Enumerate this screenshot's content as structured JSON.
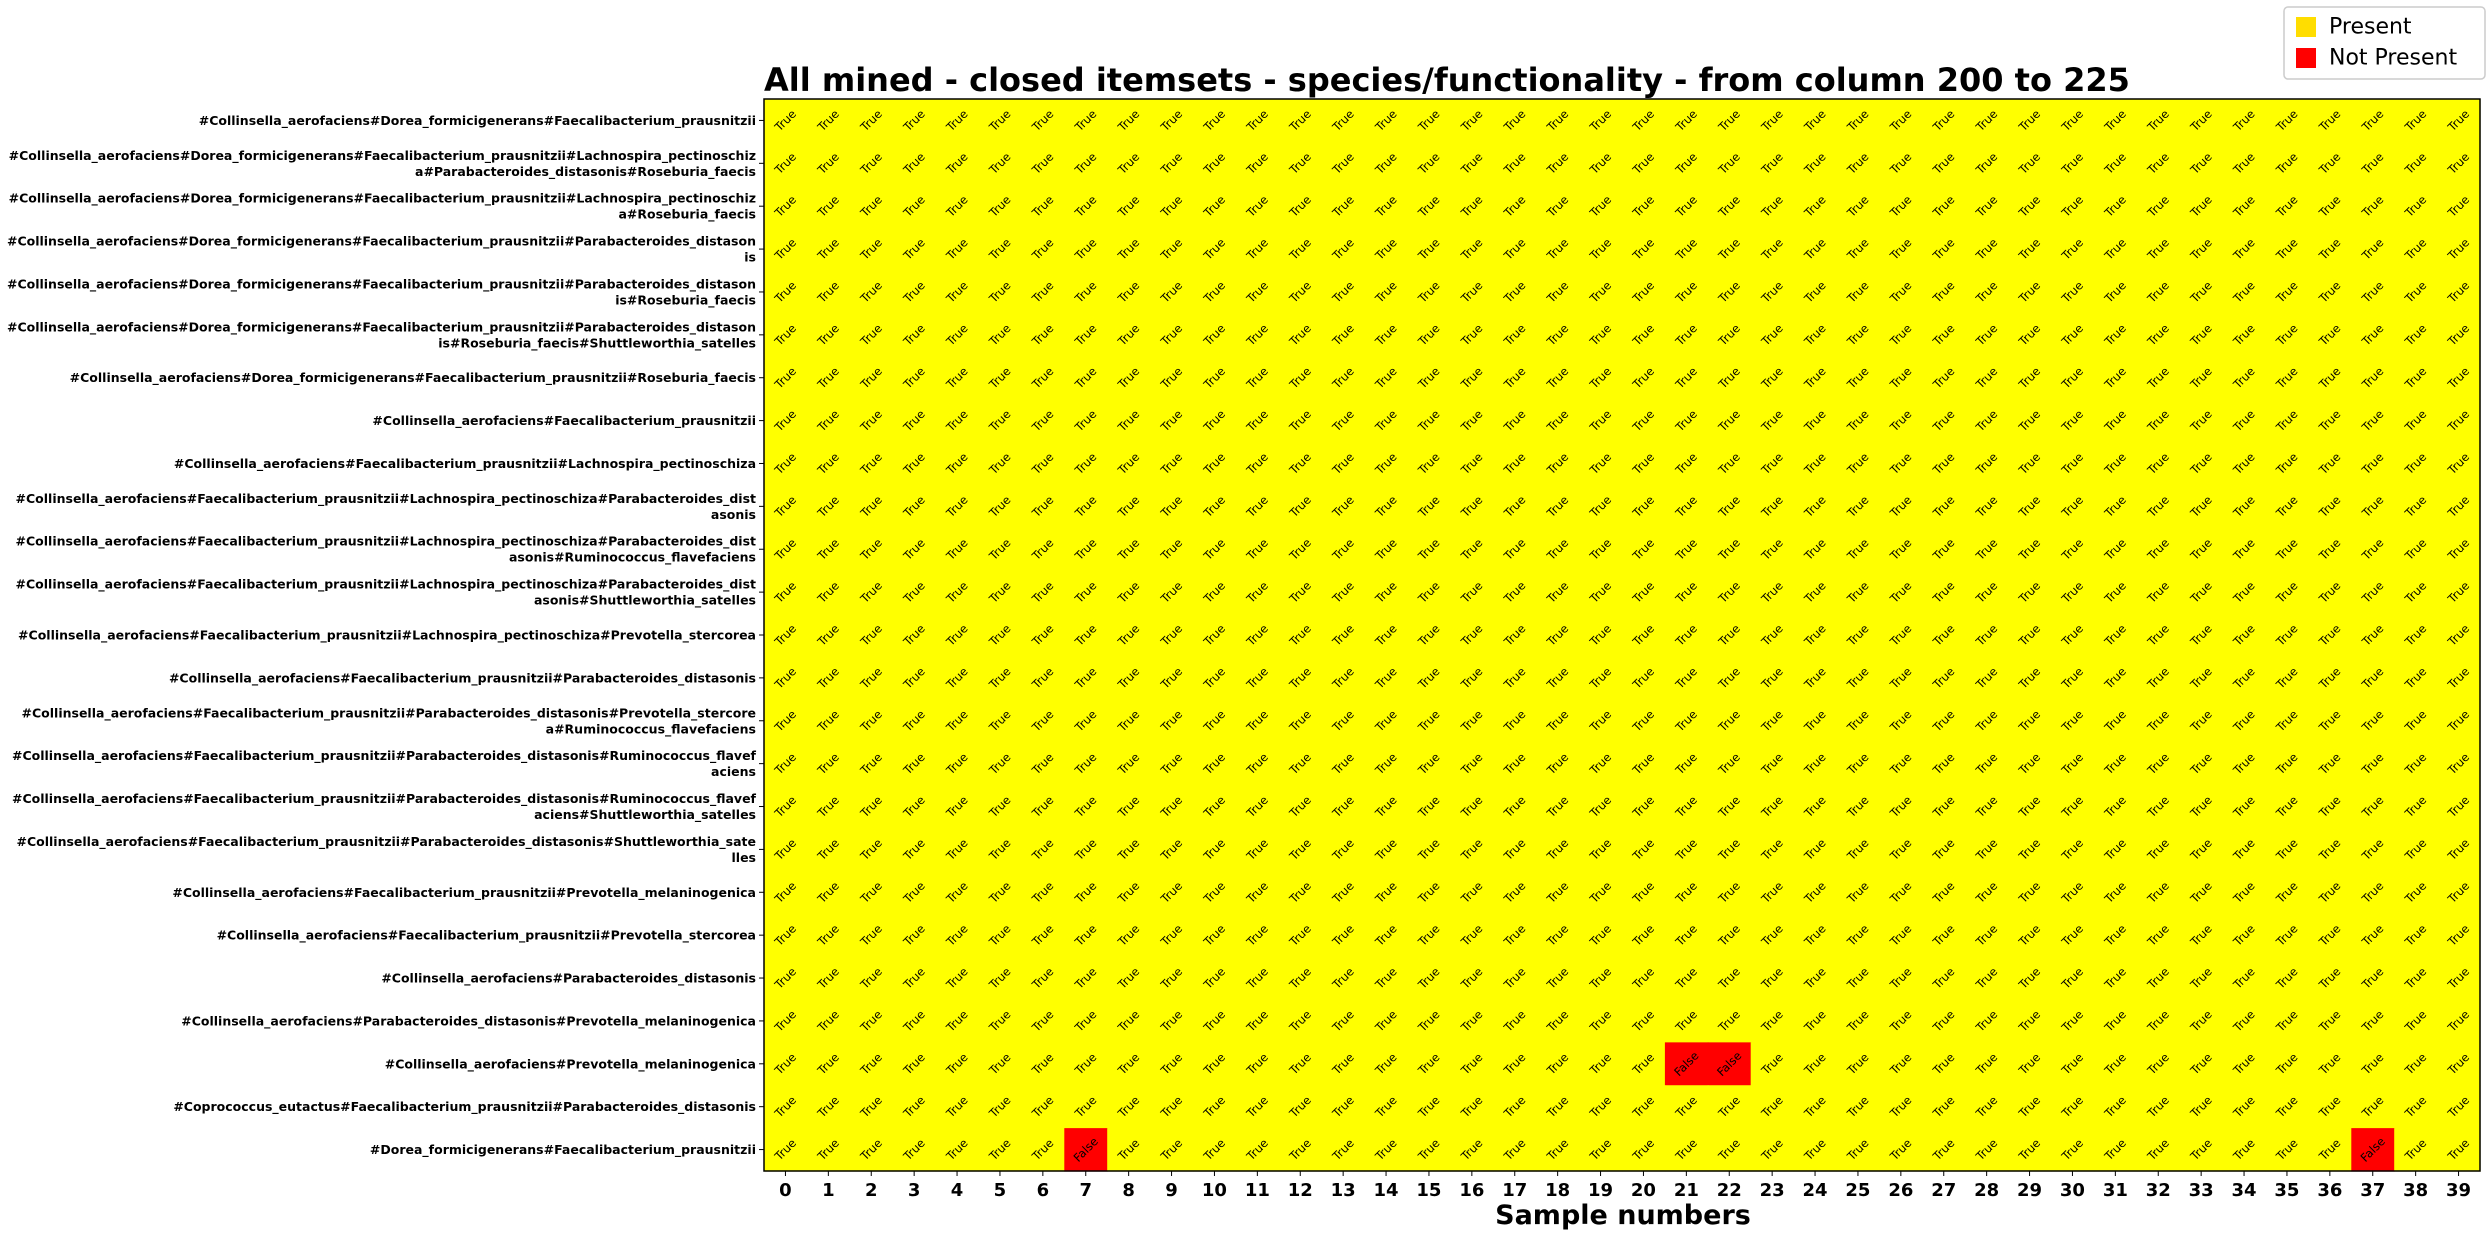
{
  "chart_data": {
    "type": "heatmap",
    "title": "All mined - closed itemsets - species/functionality - from column 200 to 225",
    "xlabel": "Sample numbers",
    "ylabel": "",
    "x": [
      0,
      1,
      2,
      3,
      4,
      5,
      6,
      7,
      8,
      9,
      10,
      11,
      12,
      13,
      14,
      15,
      16,
      17,
      18,
      19,
      20,
      21,
      22,
      23,
      24,
      25,
      26,
      27,
      28,
      29,
      30,
      31,
      32,
      33,
      34,
      35,
      36,
      37,
      38,
      39
    ],
    "rows": [
      [
        "#Collinsella_aerofaciens#Dorea_formicigenerans#Faecalibacterium_prausnitzii"
      ],
      [
        "#Collinsella_aerofaciens#Dorea_formicigenerans#Faecalibacterium_prausnitzii#Lachnospira_pectinoschiz",
        "a#Parabacteroides_distasonis#Roseburia_faecis"
      ],
      [
        "#Collinsella_aerofaciens#Dorea_formicigenerans#Faecalibacterium_prausnitzii#Lachnospira_pectinoschiz",
        "a#Roseburia_faecis"
      ],
      [
        "#Collinsella_aerofaciens#Dorea_formicigenerans#Faecalibacterium_prausnitzii#Parabacteroides_distason",
        "is"
      ],
      [
        "#Collinsella_aerofaciens#Dorea_formicigenerans#Faecalibacterium_prausnitzii#Parabacteroides_distason",
        "is#Roseburia_faecis"
      ],
      [
        "#Collinsella_aerofaciens#Dorea_formicigenerans#Faecalibacterium_prausnitzii#Parabacteroides_distason",
        "is#Roseburia_faecis#Shuttleworthia_satelles"
      ],
      [
        "#Collinsella_aerofaciens#Dorea_formicigenerans#Faecalibacterium_prausnitzii#Roseburia_faecis"
      ],
      [
        "#Collinsella_aerofaciens#Faecalibacterium_prausnitzii"
      ],
      [
        "#Collinsella_aerofaciens#Faecalibacterium_prausnitzii#Lachnospira_pectinoschiza"
      ],
      [
        "#Collinsella_aerofaciens#Faecalibacterium_prausnitzii#Lachnospira_pectinoschiza#Parabacteroides_dist",
        "asonis"
      ],
      [
        "#Collinsella_aerofaciens#Faecalibacterium_prausnitzii#Lachnospira_pectinoschiza#Parabacteroides_dist",
        "asonis#Ruminococcus_flavefaciens"
      ],
      [
        "#Collinsella_aerofaciens#Faecalibacterium_prausnitzii#Lachnospira_pectinoschiza#Parabacteroides_dist",
        "asonis#Shuttleworthia_satelles"
      ],
      [
        "#Collinsella_aerofaciens#Faecalibacterium_prausnitzii#Lachnospira_pectinoschiza#Prevotella_stercorea"
      ],
      [
        "#Collinsella_aerofaciens#Faecalibacterium_prausnitzii#Parabacteroides_distasonis"
      ],
      [
        "#Collinsella_aerofaciens#Faecalibacterium_prausnitzii#Parabacteroides_distasonis#Prevotella_stercore",
        "a#Ruminococcus_flavefaciens"
      ],
      [
        "#Collinsella_aerofaciens#Faecalibacterium_prausnitzii#Parabacteroides_distasonis#Ruminococcus_flavef",
        "aciens"
      ],
      [
        "#Collinsella_aerofaciens#Faecalibacterium_prausnitzii#Parabacteroides_distasonis#Ruminococcus_flavef",
        "aciens#Shuttleworthia_satelles"
      ],
      [
        "#Collinsella_aerofaciens#Faecalibacterium_prausnitzii#Parabacteroides_distasonis#Shuttleworthia_sate",
        "lles"
      ],
      [
        "#Collinsella_aerofaciens#Faecalibacterium_prausnitzii#Prevotella_melaninogenica"
      ],
      [
        "#Collinsella_aerofaciens#Faecalibacterium_prausnitzii#Prevotella_stercorea"
      ],
      [
        "#Collinsella_aerofaciens#Parabacteroides_distasonis"
      ],
      [
        "#Collinsella_aerofaciens#Parabacteroides_distasonis#Prevotella_melaninogenica"
      ],
      [
        "#Collinsella_aerofaciens#Prevotella_melaninogenica"
      ],
      [
        "#Coprococcus_eutactus#Faecalibacterium_prausnitzii#Parabacteroides_distasonis"
      ],
      [
        "#Dorea_formicigenerans#Faecalibacterium_prausnitzii"
      ]
    ],
    "default_value": "True",
    "false_cells": [
      [
        22,
        21
      ],
      [
        22,
        22
      ],
      [
        24,
        7
      ],
      [
        24,
        37
      ]
    ],
    "true_label": "True",
    "false_label": "False",
    "colors": {
      "present": "#ffff00",
      "not_present": "#ff0000"
    },
    "legend": {
      "placement": "top-right",
      "entries": [
        {
          "label": "Present",
          "color": "#ffdd00"
        },
        {
          "label": "Not Present",
          "color": "#ff0000"
        }
      ]
    },
    "grid": false
  }
}
